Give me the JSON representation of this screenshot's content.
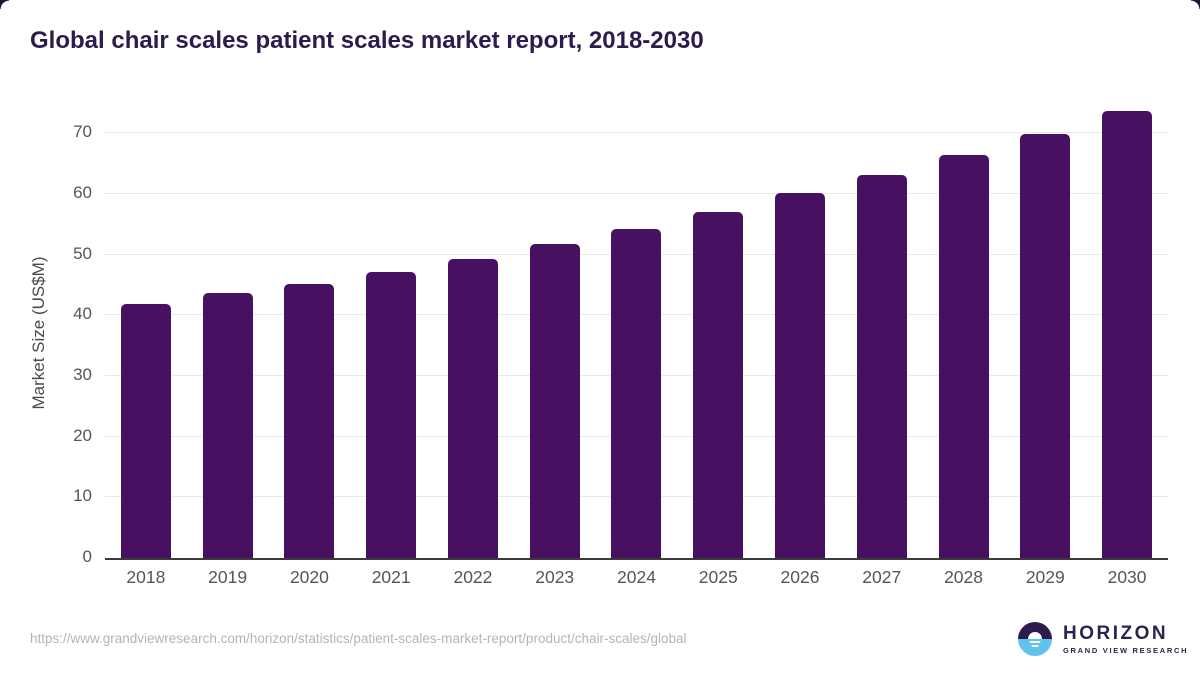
{
  "header": {
    "title": "Global chair scales patient scales market report, 2018-2030"
  },
  "chart_data": {
    "type": "bar",
    "title": "Global chair scales patient scales market report, 2018-2030",
    "categories": [
      "2018",
      "2019",
      "2020",
      "2021",
      "2022",
      "2023",
      "2024",
      "2025",
      "2026",
      "2027",
      "2028",
      "2029",
      "2030"
    ],
    "values": [
      41.9,
      43.7,
      45.1,
      47.1,
      49.3,
      51.7,
      54.3,
      57.1,
      60.1,
      63.1,
      66.4,
      69.8,
      73.6
    ],
    "xlabel": "",
    "ylabel": "Market Size (US$M)",
    "ylim": [
      0,
      74
    ],
    "yticks": [
      0,
      10,
      20,
      30,
      40,
      50,
      60,
      70
    ],
    "grid": true,
    "legend": false,
    "bar_color": "#481060"
  },
  "footer": {
    "source_url": "https://www.grandviewresearch.com/horizon/statistics/patient-scales-market-report/product/chair-scales/global",
    "logo": {
      "brand": "HORIZON",
      "sub_brand": "GRAND VIEW RESEARCH"
    }
  },
  "colors": {
    "bar": "#481060",
    "title_text": "#2d1b4e",
    "axis_label": "#555555",
    "gridline": "#e9e9e9",
    "axis_line": "#3b3b3b",
    "source_text": "#b4b4b4",
    "logo_purple": "#2d1b4e",
    "logo_blue": "#5fc3ec"
  }
}
